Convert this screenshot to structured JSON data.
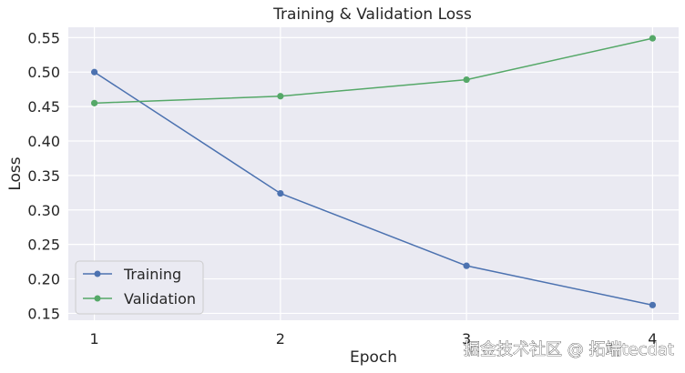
{
  "chart_data": {
    "type": "line",
    "title": "Training & Validation Loss",
    "xlabel": "Epoch",
    "ylabel": "Loss",
    "x": [
      1,
      2,
      3,
      4
    ],
    "xticks": [
      "1",
      "2",
      "3",
      "4"
    ],
    "yticks": [
      "0.15",
      "0.20",
      "0.25",
      "0.30",
      "0.35",
      "0.40",
      "0.45",
      "0.50",
      "0.55"
    ],
    "ylim": [
      0.14,
      0.565
    ],
    "xlim": [
      0.86,
      4.14
    ],
    "grid": true,
    "legend_position": "lower-left",
    "series": [
      {
        "name": "Training",
        "color": "#4c72b0",
        "values": [
          0.5,
          0.324,
          0.219,
          0.162
        ]
      },
      {
        "name": "Validation",
        "color": "#55a868",
        "values": [
          0.455,
          0.465,
          0.489,
          0.549
        ]
      }
    ]
  },
  "watermark": "掘金技术社区 @ 拓端tecdat"
}
